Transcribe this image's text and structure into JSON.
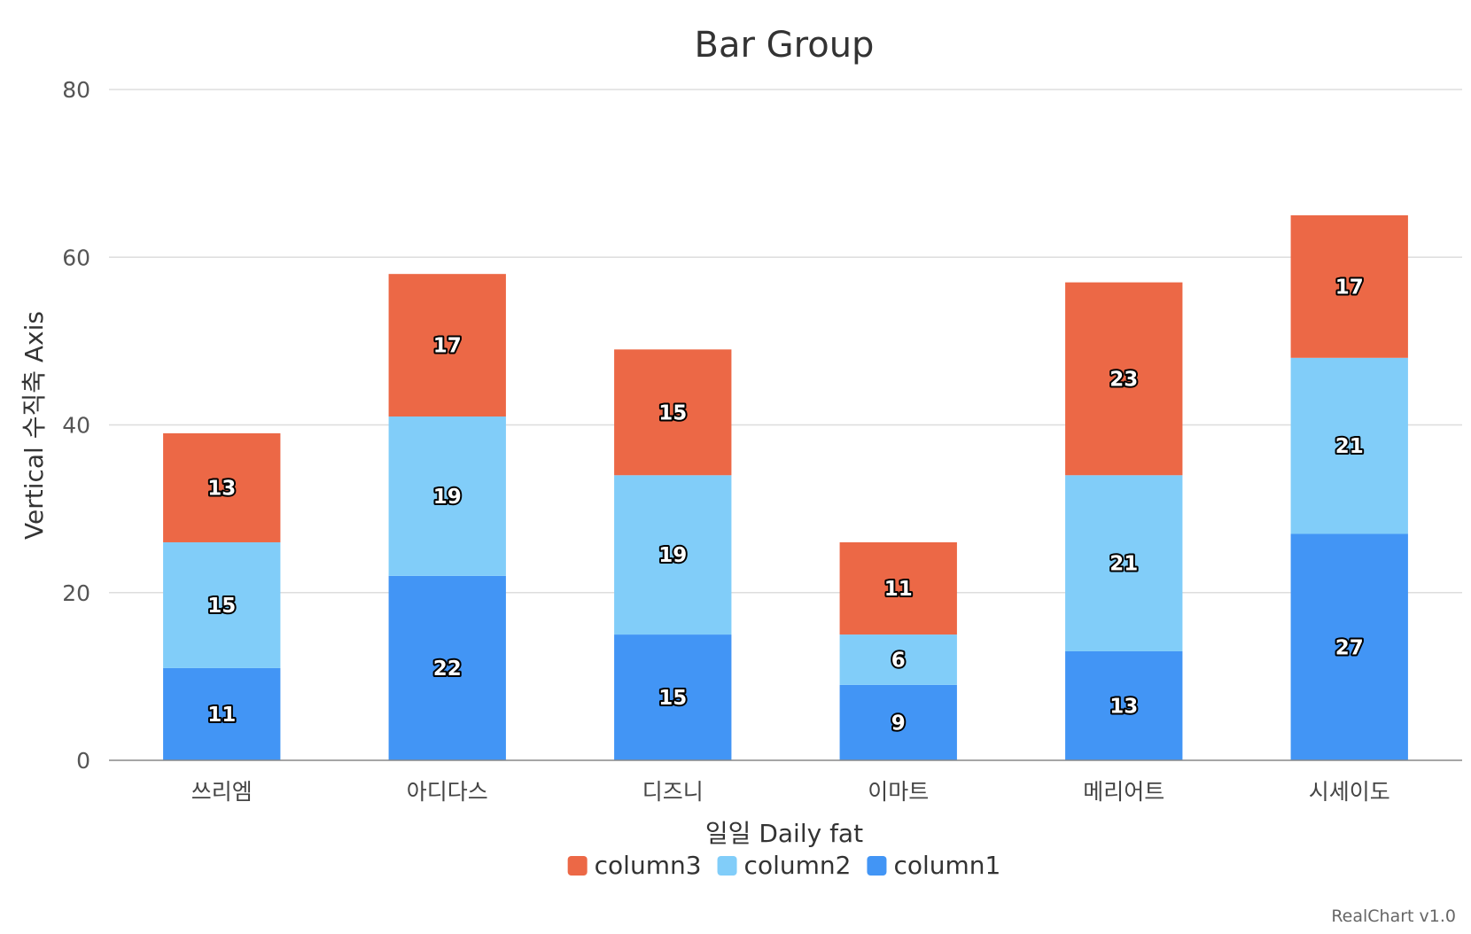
{
  "chart_data": {
    "type": "bar",
    "stacked": true,
    "title": "Bar Group",
    "xlabel": "일일 Daily fat",
    "ylabel": "Vertical 수직축 Axis",
    "ylim": [
      0,
      80
    ],
    "yticks": [
      0,
      20,
      40,
      60,
      80
    ],
    "grid": true,
    "legend_position": "bottom",
    "categories": [
      "쓰리엠",
      "아디다스",
      "디즈니",
      "이마트",
      "메리어트",
      "시세이도"
    ],
    "series": [
      {
        "name": "column1",
        "color": "#4295f5",
        "values": [
          11,
          22,
          15,
          9,
          13,
          27
        ]
      },
      {
        "name": "column2",
        "color": "#81cdf9",
        "values": [
          15,
          19,
          19,
          6,
          21,
          21
        ]
      },
      {
        "name": "column3",
        "color": "#ec6846",
        "values": [
          13,
          17,
          15,
          11,
          23,
          17
        ]
      }
    ],
    "legend_order": [
      "column3",
      "column2",
      "column1"
    ],
    "credits": "RealChart v1.0"
  }
}
